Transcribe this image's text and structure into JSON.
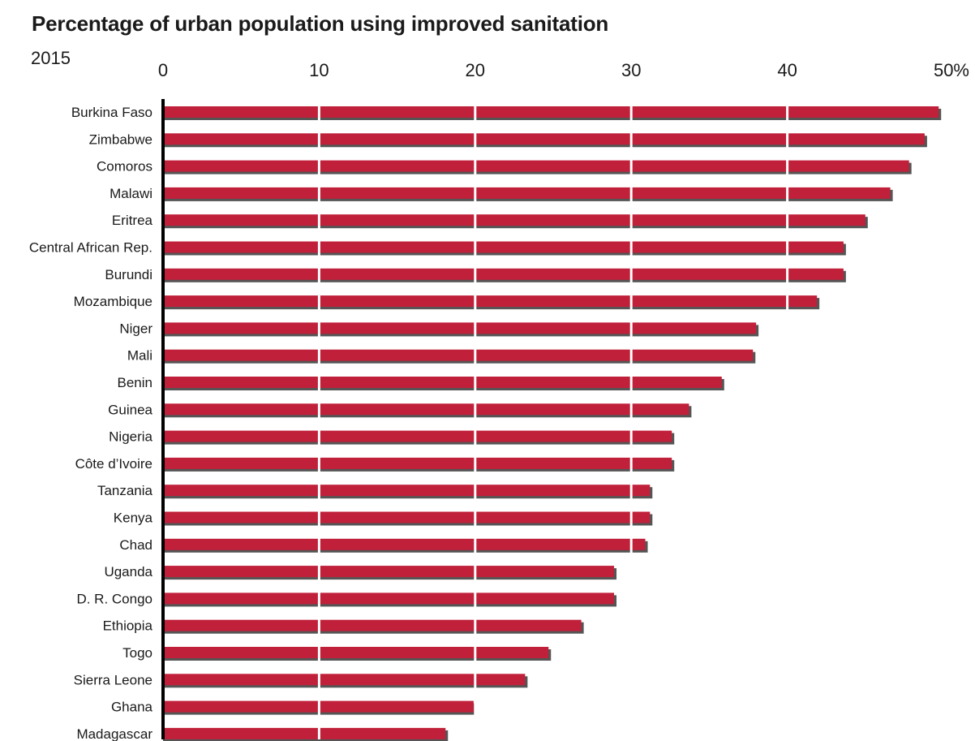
{
  "chart_data": {
    "type": "bar",
    "orientation": "horizontal",
    "title": "Percentage of urban population using improved sanitation",
    "subtitle": "2015",
    "categories": [
      "Burkina Faso",
      "Zimbabwe",
      "Comoros",
      "Malawi",
      "Eritrea",
      "Central African Rep.",
      "Burundi",
      "Mozambique",
      "Niger",
      "Mali",
      "Benin",
      "Guinea",
      "Nigeria",
      "Côte d’Ivoire",
      "Tanzania",
      "Kenya",
      "Chad",
      "Uganda",
      "D. R. Congo",
      "Ethiopia",
      "Togo",
      "Sierra Leone",
      "Ghana",
      "Madagascar"
    ],
    "values": [
      49.7,
      48.8,
      47.8,
      46.6,
      45.0,
      43.6,
      43.6,
      41.9,
      38.0,
      37.8,
      35.8,
      33.7,
      32.6,
      32.6,
      31.2,
      31.2,
      30.9,
      28.9,
      28.9,
      26.8,
      24.7,
      23.2,
      19.9,
      18.1
    ],
    "xlim": [
      0,
      50
    ],
    "x_ticks": [
      "0",
      "10",
      "20",
      "30",
      "40",
      "50%"
    ],
    "grid": true,
    "colors": {
      "bar": "#c0203a",
      "shadow": "#555555",
      "grid": "#ffffff",
      "axis": "#000000"
    }
  }
}
